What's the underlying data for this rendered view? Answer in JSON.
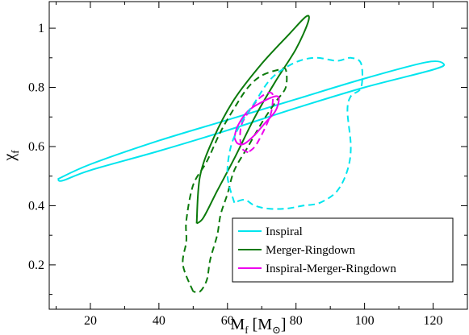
{
  "chart_data": {
    "type": "contour",
    "xlabel": {
      "main": "M",
      "sub": "f",
      "unit_open": " [M",
      "unit_sub": "⊙",
      "unit_close": "]"
    },
    "ylabel": {
      "main": "χ",
      "sub": "f"
    },
    "xlim": [
      8,
      130
    ],
    "ylim": [
      0.05,
      1.09
    ],
    "xticks": [
      20,
      40,
      60,
      80,
      100,
      120
    ],
    "yticks": [
      0.2,
      0.4,
      0.6,
      0.8,
      1
    ],
    "ytick_labels": [
      "0.2",
      "0.4",
      "0.6",
      "0.8",
      "1"
    ],
    "grid": false,
    "legend_position": "lower-right",
    "series": [
      {
        "name": "Inspiral",
        "color": "#00e5ee",
        "contours": [
          {
            "style": "solid",
            "shape": "ellipse",
            "points": [
              [
                10.5,
                0.49
              ],
              [
                20,
                0.54
              ],
              [
                40,
                0.62
              ],
              [
                60,
                0.69
              ],
              [
                80,
                0.76
              ],
              [
                100,
                0.83
              ],
              [
                118,
                0.885
              ],
              [
                123,
                0.88
              ],
              [
                120,
                0.86
              ],
              [
                100,
                0.8
              ],
              [
                80,
                0.73
              ],
              [
                60,
                0.655
              ],
              [
                40,
                0.585
              ],
              [
                20,
                0.52
              ],
              [
                12,
                0.485
              ],
              [
                10.5,
                0.49
              ]
            ]
          }
        ]
      },
      {
        "name": "Merger-Ringdown",
        "color": "#0b7a0b",
        "contours": [
          {
            "style": "solid",
            "shape": "ellipse",
            "points": [
              [
                51,
                0.34
              ],
              [
                52,
                0.5
              ],
              [
                56,
                0.63
              ],
              [
                62,
                0.76
              ],
              [
                70,
                0.88
              ],
              [
                78,
                0.98
              ],
              [
                83,
                1.04
              ],
              [
                83.5,
                1.02
              ],
              [
                80,
                0.93
              ],
              [
                74,
                0.82
              ],
              [
                68,
                0.7
              ],
              [
                62,
                0.56
              ],
              [
                57,
                0.45
              ],
              [
                53,
                0.36
              ],
              [
                51,
                0.34
              ]
            ]
          },
          {
            "style": "dashed",
            "shape": "contour",
            "points": [
              [
                50,
                0.11
              ],
              [
                47,
                0.2
              ],
              [
                48,
                0.28
              ],
              [
                48,
                0.35
              ],
              [
                50,
                0.47
              ],
              [
                54,
                0.55
              ],
              [
                58,
                0.65
              ],
              [
                62,
                0.73
              ],
              [
                66,
                0.8
              ],
              [
                70,
                0.84
              ],
              [
                75,
                0.86
              ],
              [
                77,
                0.86
              ],
              [
                77,
                0.8
              ],
              [
                74,
                0.75
              ],
              [
                70,
                0.68
              ],
              [
                66,
                0.6
              ],
              [
                62,
                0.52
              ],
              [
                60,
                0.44
              ],
              [
                58,
                0.37
              ],
              [
                57,
                0.3
              ],
              [
                55,
                0.22
              ],
              [
                54,
                0.15
              ],
              [
                52,
                0.11
              ],
              [
                50,
                0.11
              ]
            ]
          }
        ]
      },
      {
        "name": "Inspiral-Merger-Ringdown",
        "color": "#ee00ee",
        "contours": [
          {
            "style": "solid",
            "shape": "ellipse",
            "points": [
              [
                62,
                0.63
              ],
              [
                63,
                0.67
              ],
              [
                66,
                0.72
              ],
              [
                70,
                0.75
              ],
              [
                74,
                0.77
              ],
              [
                75,
                0.76
              ],
              [
                74,
                0.72
              ],
              [
                71,
                0.68
              ],
              [
                68,
                0.64
              ],
              [
                65,
                0.61
              ],
              [
                63,
                0.61
              ],
              [
                62,
                0.63
              ]
            ]
          },
          {
            "style": "dashed",
            "shape": "contour",
            "points": [
              [
                66,
                0.58
              ],
              [
                64,
                0.6
              ],
              [
                64,
                0.67
              ],
              [
                67,
                0.73
              ],
              [
                70,
                0.77
              ],
              [
                73,
                0.78
              ],
              [
                73,
                0.73
              ],
              [
                72,
                0.69
              ],
              [
                70,
                0.64
              ],
              [
                68,
                0.6
              ],
              [
                66,
                0.58
              ]
            ]
          }
        ]
      },
      {
        "name": "",
        "color": "#00e5ee",
        "contours": [
          {
            "style": "dashed",
            "shape": "contour",
            "points": [
              [
                62,
                0.41
              ],
              [
                60,
                0.5
              ],
              [
                61,
                0.6
              ],
              [
                64,
                0.68
              ],
              [
                68,
                0.75
              ],
              [
                72,
                0.82
              ],
              [
                76,
                0.86
              ],
              [
                81,
                0.89
              ],
              [
                86,
                0.9
              ],
              [
                92,
                0.89
              ],
              [
                96,
                0.9
              ],
              [
                99,
                0.88
              ],
              [
                99,
                0.8
              ],
              [
                96,
                0.77
              ],
              [
                95,
                0.72
              ],
              [
                96,
                0.6
              ],
              [
                95,
                0.52
              ],
              [
                92,
                0.45
              ],
              [
                87,
                0.41
              ],
              [
                82,
                0.4
              ],
              [
                77,
                0.39
              ],
              [
                72,
                0.39
              ],
              [
                68,
                0.4
              ],
              [
                65,
                0.42
              ],
              [
                62,
                0.41
              ]
            ]
          }
        ]
      }
    ]
  }
}
